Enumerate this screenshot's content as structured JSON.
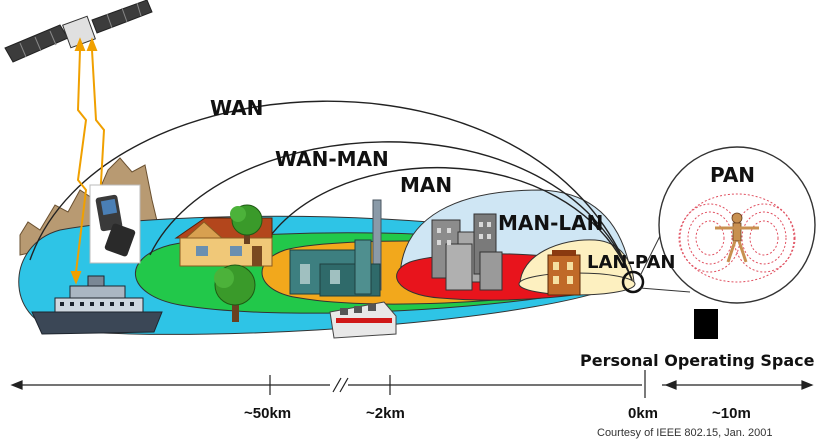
{
  "diagram": {
    "regions": {
      "wan": "WAN",
      "wan_man": "WAN-MAN",
      "man": "MAN",
      "man_lan": "MAN-LAN",
      "lan_pan": "LAN-PAN",
      "pan": "PAN"
    },
    "personal_space_label": "Personal Operating Space",
    "axis": {
      "ticks": [
        "~50km",
        "~2km",
        "0km",
        "~10m"
      ]
    },
    "credit": "Courtesy of IEEE 802.15, Jan. 2001"
  },
  "colors": {
    "wan_zone": "#2ec4e6",
    "wan_man_zone": "#22c84a",
    "man_zone": "#f2a81c",
    "man_lan_zone": "#e8141c",
    "lan_pan_zone": "#fdf0c0",
    "dome_fill": "#cfe6f4",
    "signal": "#f0a000"
  }
}
